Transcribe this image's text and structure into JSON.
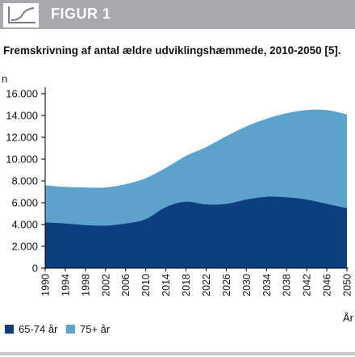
{
  "figure": {
    "label": "FIGUR 1",
    "icon": "line-chart-icon",
    "title": "Fremskrivning af antal ældre udviklingshæmmede, 2010-2050 [5]."
  },
  "chart_data": {
    "type": "area",
    "stacked": true,
    "ylabel": "n",
    "xlabel": "År",
    "ylim": [
      0,
      16000
    ],
    "yticks": [
      "0",
      "2.000",
      "4.000",
      "6.000",
      "8.000",
      "10.000",
      "12.000",
      "14.000",
      "16.000"
    ],
    "xlim": [
      1990,
      2050
    ],
    "xticks": [
      "1990",
      "1994",
      "1998",
      "2002",
      "2006",
      "2010",
      "2014",
      "2018",
      "2022",
      "2026",
      "2030",
      "2034",
      "2038",
      "2042",
      "2046",
      "2050"
    ],
    "grid": false,
    "legend_position": "bottom-left",
    "series": [
      {
        "name": "65-74 år",
        "color": "#0c3f7d",
        "x": [
          1990,
          1994,
          1998,
          2002,
          2006,
          2010,
          2014,
          2018,
          2022,
          2026,
          2030,
          2034,
          2038,
          2042,
          2046,
          2050
        ],
        "values": [
          4200,
          4100,
          3950,
          3900,
          4100,
          4500,
          5600,
          6100,
          5850,
          5900,
          6300,
          6550,
          6500,
          6300,
          5900,
          5500
        ]
      },
      {
        "name": "75+ år",
        "color": "#5ba2cf",
        "x": [
          1990,
          1994,
          1998,
          2002,
          2006,
          2010,
          2014,
          2018,
          2022,
          2026,
          2030,
          2034,
          2038,
          2042,
          2046,
          2050
        ],
        "values": [
          3400,
          3350,
          3450,
          3500,
          3600,
          3750,
          3600,
          4200,
          5250,
          6200,
          6700,
          7150,
          7700,
          8200,
          8600,
          8600
        ]
      }
    ]
  }
}
